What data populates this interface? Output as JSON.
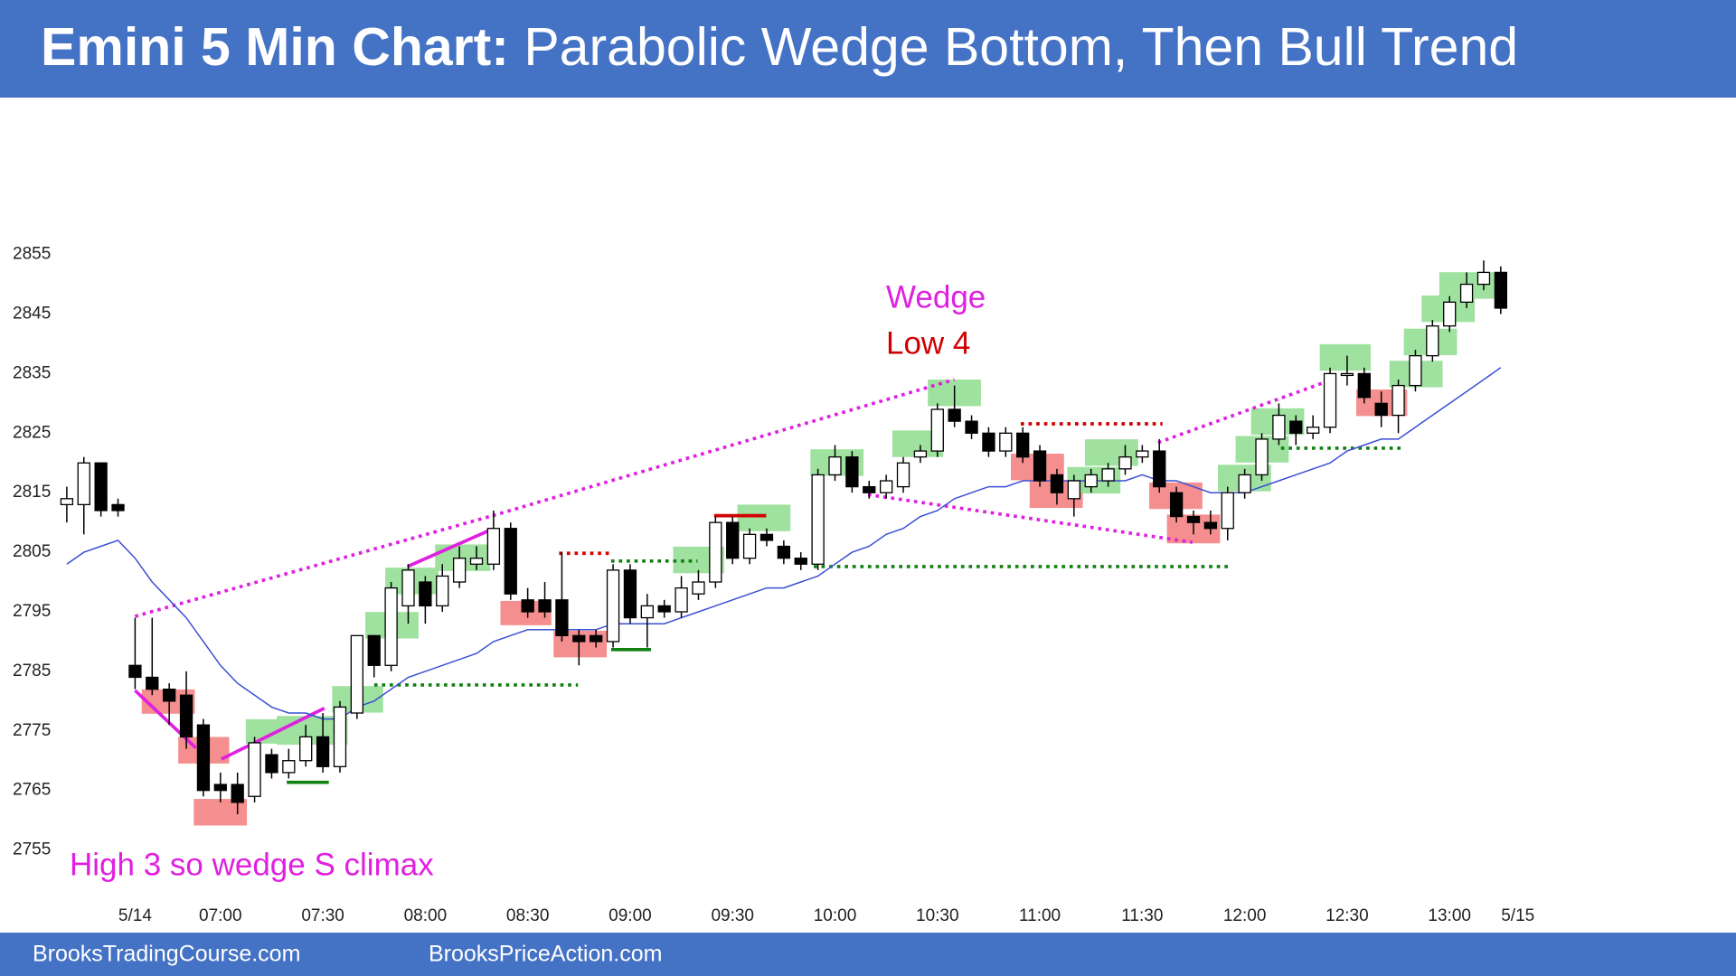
{
  "header": {
    "title_bold": "Emini 5 Min Chart:",
    "title_rest": "Parabolic Wedge Bottom, Then Bull Trend"
  },
  "footer": {
    "left": "BrooksTradingCourse.com",
    "right": "BrooksPriceAction.com"
  },
  "chart_data": {
    "type": "candlestick",
    "annotations": [
      "Wedge",
      "Low 4",
      "High 3 so wedge S climax"
    ],
    "x": [
      -4,
      -3,
      -2,
      -1,
      0,
      1,
      2,
      3,
      4,
      5,
      6,
      7,
      8,
      9,
      10,
      11,
      12,
      13,
      14,
      15,
      16,
      17,
      18,
      19,
      20,
      21,
      22,
      23,
      24,
      25,
      26,
      27,
      28,
      29,
      30,
      31,
      32,
      33,
      34,
      35,
      36,
      37,
      38,
      39,
      40,
      41,
      42,
      43,
      44,
      45,
      46,
      47,
      48,
      49,
      50,
      51,
      52,
      53,
      54,
      55,
      56,
      57,
      58,
      59,
      60,
      61,
      62,
      63,
      64,
      65,
      66,
      67,
      68,
      69,
      70,
      71,
      72,
      73,
      74,
      75,
      76,
      77,
      78,
      79,
      80
    ],
    "open": [
      2813,
      2813,
      2820,
      2813,
      2786,
      2784,
      2782,
      2781,
      2776,
      2766,
      2766,
      2764,
      2771,
      2768,
      2770,
      2774,
      2769,
      2778,
      2791,
      2786,
      2796,
      2800,
      2796,
      2800,
      2803,
      2803,
      2809,
      2797,
      2797,
      2797,
      2791,
      2791,
      2790,
      2802,
      2794,
      2796,
      2795,
      2798,
      2800,
      2810,
      2804,
      2808,
      2806,
      2804,
      2803,
      2818,
      2821,
      2816,
      2815,
      2816,
      2821,
      2822,
      2829,
      2827,
      2825,
      2822,
      2825,
      2822,
      2818,
      2814,
      2816,
      2817,
      2819,
      2821,
      2822,
      2815,
      2811,
      2810,
      2809,
      2815,
      2818,
      2824,
      2827,
      2825,
      2826,
      2835,
      2835,
      2830,
      2828,
      2833,
      2838,
      2843,
      2847,
      2850,
      2852
    ],
    "high": [
      2816,
      2821,
      2820,
      2814,
      2794,
      2794,
      2783,
      2785,
      2777,
      2768,
      2768,
      2774,
      2772,
      2772,
      2776,
      2778,
      2780,
      2791,
      2791,
      2800,
      2803,
      2801,
      2803,
      2806,
      2806,
      2812,
      2810,
      2799,
      2800,
      2805,
      2792,
      2792,
      2803,
      2803,
      2798,
      2797,
      2801,
      2802,
      2811,
      2811,
      2809,
      2809,
      2807,
      2805,
      2819,
      2823,
      2822,
      2817,
      2818,
      2821,
      2823,
      2830,
      2833,
      2828,
      2826,
      2826,
      2826,
      2823,
      2819,
      2818,
      2819,
      2820,
      2823,
      2823,
      2824,
      2816,
      2812,
      2812,
      2816,
      2819,
      2825,
      2830,
      2828,
      2828,
      2836,
      2838,
      2836,
      2832,
      2834,
      2839,
      2844,
      2848,
      2852,
      2854,
      2853
    ],
    "low": [
      2810,
      2808,
      2811,
      2811,
      2782,
      2781,
      2776,
      2772,
      2764,
      2763,
      2761,
      2763,
      2767,
      2767,
      2769,
      2768,
      2768,
      2777,
      2784,
      2785,
      2793,
      2793,
      2795,
      2799,
      2802,
      2802,
      2797,
      2794,
      2794,
      2790,
      2786,
      2789,
      2789,
      2793,
      2789,
      2794,
      2794,
      2797,
      2799,
      2803,
      2803,
      2806,
      2803,
      2802,
      2802,
      2817,
      2815,
      2814,
      2814,
      2815,
      2820,
      2821,
      2826,
      2824,
      2821,
      2821,
      2820,
      2816,
      2813,
      2811,
      2815,
      2816,
      2818,
      2820,
      2815,
      2810,
      2808,
      2808,
      2807,
      2814,
      2817,
      2823,
      2823,
      2824,
      2825,
      2833,
      2830,
      2826,
      2825,
      2832,
      2837,
      2842,
      2846,
      2849,
      2845
    ],
    "close": [
      2814,
      2820,
      2812,
      2812,
      2784,
      2782,
      2780,
      2774,
      2765,
      2765,
      2763,
      2773,
      2768,
      2770,
      2774,
      2769,
      2779,
      2791,
      2786,
      2799,
      2802,
      2796,
      2801,
      2804,
      2804,
      2809,
      2798,
      2795,
      2795,
      2791,
      2790,
      2790,
      2802,
      2794,
      2796,
      2795,
      2799,
      2800,
      2810,
      2804,
      2808,
      2807,
      2804,
      2803,
      2818,
      2821,
      2816,
      2815,
      2817,
      2820,
      2822,
      2829,
      2827,
      2825,
      2822,
      2825,
      2821,
      2817,
      2815,
      2817,
      2818,
      2819,
      2821,
      2822,
      2816,
      2811,
      2810,
      2809,
      2815,
      2818,
      2824,
      2828,
      2825,
      2826,
      2835,
      2835,
      2831,
      2828,
      2833,
      2838,
      2843,
      2847,
      2850,
      2852,
      2846
    ],
    "ema": [
      2803,
      2805,
      2806,
      2807,
      2804,
      2800,
      2797,
      2794,
      2790,
      2786,
      2783,
      2781,
      2779,
      2778,
      2778,
      2777,
      2777,
      2779,
      2780,
      2782,
      2784,
      2785,
      2786,
      2787,
      2788,
      2790,
      2791,
      2792,
      2792,
      2792,
      2792,
      2792,
      2793,
      2793,
      2793,
      2793,
      2794,
      2795,
      2796,
      2797,
      2798,
      2799,
      2799,
      2800,
      2801,
      2803,
      2805,
      2806,
      2808,
      2809,
      2811,
      2812,
      2814,
      2815,
      2816,
      2816,
      2817,
      2817,
      2817,
      2817,
      2817,
      2817,
      2817,
      2818,
      2817,
      2817,
      2816,
      2815,
      2815,
      2815,
      2816,
      2817,
      2818,
      2819,
      2820,
      2822,
      2823,
      2824,
      2824,
      2826,
      2828,
      2830,
      2832,
      2834,
      2836
    ],
    "ema_color": "#3b4fd4",
    "bull_color": "#ffffff",
    "bear_color": "#000000",
    "xlim": [
      -5,
      82
    ],
    "ylim": [
      2750,
      2870
    ],
    "xticks": [
      {
        "value": 0,
        "label": "5/14"
      },
      {
        "value": 5,
        "label": "07:00"
      },
      {
        "value": 11,
        "label": "07:30"
      },
      {
        "value": 17,
        "label": "08:00"
      },
      {
        "value": 23,
        "label": "08:30"
      },
      {
        "value": 29,
        "label": "09:00"
      },
      {
        "value": 35,
        "label": "09:30"
      },
      {
        "value": 41,
        "label": "10:00"
      },
      {
        "value": 47,
        "label": "10:30"
      },
      {
        "value": 53,
        "label": "11:00"
      },
      {
        "value": 59,
        "label": "11:30"
      },
      {
        "value": 65,
        "label": "12:00"
      },
      {
        "value": 71,
        "label": "12:30"
      },
      {
        "value": 77,
        "label": "13:00"
      },
      {
        "value": 81,
        "label": "5/15"
      }
    ],
    "yticks": [
      2755,
      2765,
      2775,
      2785,
      2795,
      2805,
      2815,
      2825,
      2835,
      2845,
      2855
    ],
    "grid": false
  }
}
